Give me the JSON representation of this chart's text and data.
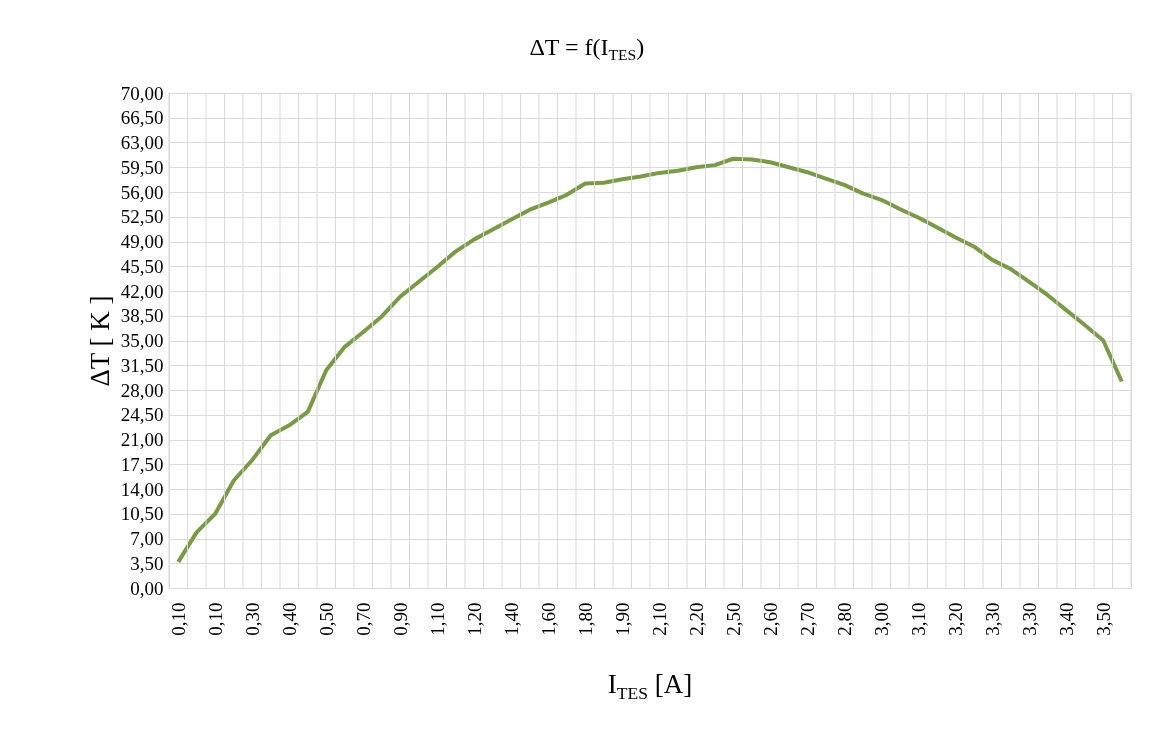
{
  "chart_data": {
    "type": "line",
    "title": "ΔT  = f(I$_{TES}$)",
    "xlabel": "I$_{TES}$ [A]",
    "ylabel": "ΔT [ K ]",
    "categories": [
      "0,10",
      null,
      "0,10",
      null,
      "0,30",
      null,
      "0,40",
      null,
      "0,50",
      null,
      "0,70",
      null,
      "0,90",
      null,
      "1,10",
      null,
      "1,20",
      null,
      "1,40",
      null,
      "1,60",
      null,
      "1,80",
      null,
      "1,90",
      null,
      "2,10",
      null,
      "2,20",
      null,
      "2,50",
      null,
      "2,60",
      null,
      "2,70",
      null,
      "2,80",
      null,
      "3,00",
      null,
      "3,10",
      null,
      "3,20",
      null,
      "3,30",
      null,
      "3,30",
      null,
      "3,40",
      null,
      "3,50",
      null
    ],
    "series": [
      {
        "color": "#7a9a47",
        "values": [
          3.7,
          7.9,
          10.5,
          15.2,
          18.1,
          21.6,
          23.0,
          24.9,
          30.8,
          34.1,
          36.2,
          38.4,
          41.2,
          43.3,
          45.4,
          47.6,
          49.3,
          50.7,
          52.1,
          53.5,
          54.5,
          55.6,
          57.2,
          57.3,
          57.8,
          58.2,
          58.7,
          59.0,
          59.5,
          59.8,
          60.7,
          60.6,
          60.2,
          59.5,
          58.8,
          57.9,
          57.0,
          55.8,
          54.9,
          53.6,
          52.4,
          51.0,
          49.6,
          48.3,
          46.4,
          45.1,
          43.3,
          41.4,
          39.3,
          37.2,
          35.0,
          29.2
        ]
      }
    ],
    "ylim": [
      0,
      70
    ],
    "yticks": [
      {
        "value": 0,
        "label": "0,00"
      },
      {
        "value": 3.5,
        "label": "3,50"
      },
      {
        "value": 7,
        "label": "7,00"
      },
      {
        "value": 10.5,
        "label": "10,50"
      },
      {
        "value": 14,
        "label": "14,00"
      },
      {
        "value": 17.5,
        "label": "17,50"
      },
      {
        "value": 21,
        "label": "21,00"
      },
      {
        "value": 24.5,
        "label": "24,50"
      },
      {
        "value": 28,
        "label": "28,00"
      },
      {
        "value": 31.5,
        "label": "31,50"
      },
      {
        "value": 35,
        "label": "35,00"
      },
      {
        "value": 38.5,
        "label": "38,50"
      },
      {
        "value": 42,
        "label": "42,00"
      },
      {
        "value": 45.5,
        "label": "45,50"
      },
      {
        "value": 49,
        "label": "49,00"
      },
      {
        "value": 52.5,
        "label": "52,50"
      },
      {
        "value": 56,
        "label": "56,00"
      },
      {
        "value": 59.5,
        "label": "59,50"
      },
      {
        "value": 63,
        "label": "63,00"
      },
      {
        "value": 66.5,
        "label": "66,50"
      },
      {
        "value": 70,
        "label": "70,00"
      }
    ],
    "grid": true,
    "line_style": "solid"
  }
}
